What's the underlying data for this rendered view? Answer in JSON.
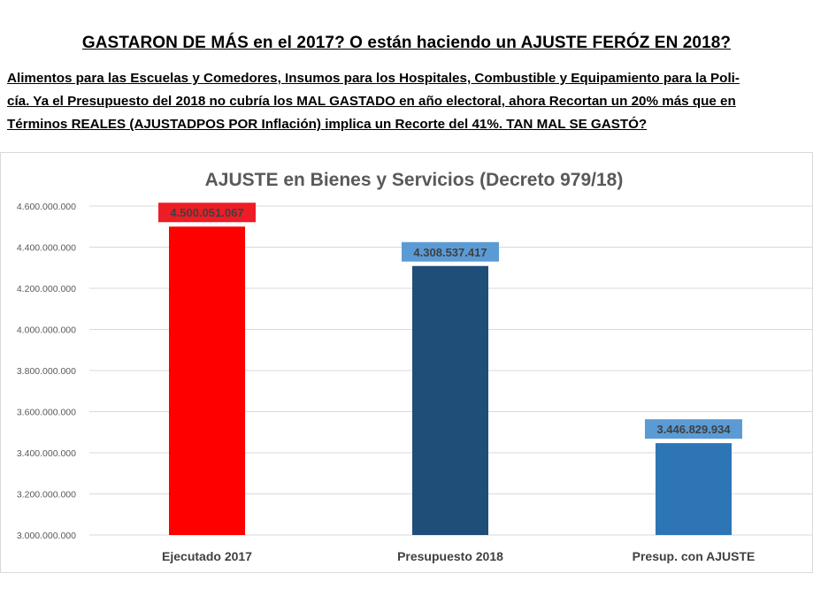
{
  "header": {
    "headline": "GASTARON DE MÁS en el 2017? O están haciendo un AJUSTE FERÓZ EN 2018?",
    "paragraph_lines": [
      "Alimentos para las Escuelas y Comedores, Insumos para los Hospitales, Combustible y Equipamiento para la Poli-",
      "cía. Ya el Presupuesto del 2018 no cubría los MAL GASTADO en año electoral, ahora Recortan un 20% más que en",
      "Términos REALES (AJUSTADPOS POR Inflación) implica un Recorte del 41%. TAN MAL SE GASTÓ?"
    ]
  },
  "chart_data": {
    "type": "bar",
    "title": "AJUSTE en Bienes y Servicios (Decreto 979/18)",
    "categories": [
      "Ejecutado 2017",
      "Presupuesto 2018",
      "Presup. con AJUSTE"
    ],
    "values": [
      4500051067,
      4308537417,
      3446829934
    ],
    "value_labels": [
      "4.500.051.067",
      "4.308.537.417",
      "3.446.829.934"
    ],
    "y_ticks": [
      3000000000,
      3200000000,
      3400000000,
      3600000000,
      3800000000,
      4000000000,
      4200000000,
      4400000000,
      4600000000
    ],
    "y_tick_labels": [
      "3.000.000.000",
      "3.200.000.000",
      "3.400.000.000",
      "3.600.000.000",
      "3.800.000.000",
      "4.000.000.000",
      "4.200.000.000",
      "4.400.000.000",
      "4.600.000.000"
    ],
    "ylim": [
      3000000000,
      4600000000
    ],
    "grid": true,
    "legend": "none",
    "bar_colors": [
      "#ff0000",
      "#1f4e79",
      "#2e75b6"
    ],
    "label_bg_colors": [
      "#ee1c25",
      "#5b9bd5",
      "#5b9bd5"
    ],
    "title_color": "#595959",
    "grid_color": "#d9d9d9"
  }
}
